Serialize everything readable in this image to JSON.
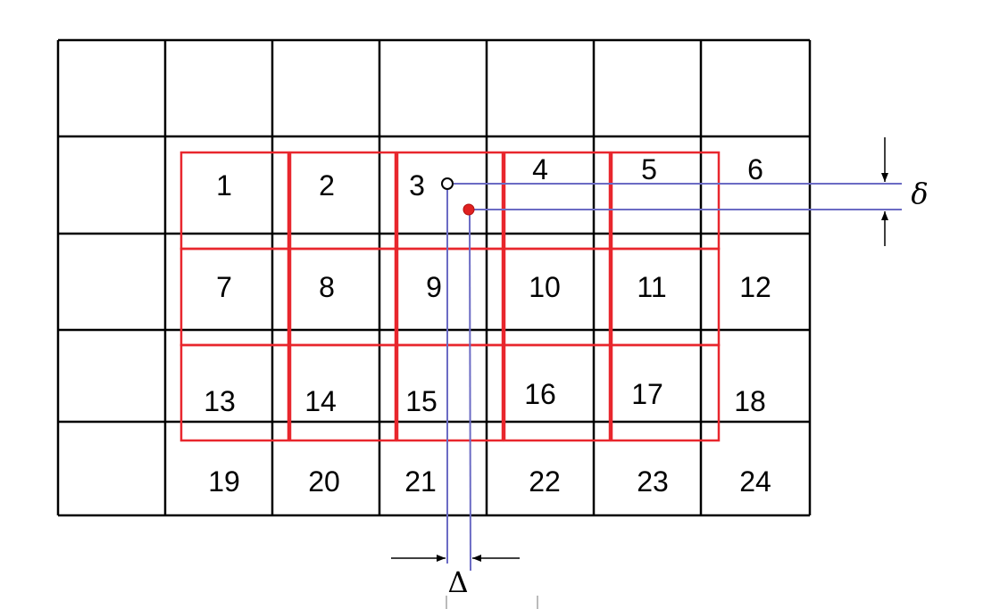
{
  "cells": [
    "1",
    "2",
    "3",
    "4",
    "5",
    "6",
    "7",
    "8",
    "9",
    "10",
    "11",
    "12",
    "13",
    "14",
    "15",
    "16",
    "17",
    "18",
    "19",
    "20",
    "21",
    "22",
    "23",
    "24"
  ],
  "symbols": {
    "delta_small": "δ",
    "delta_large": "Δ"
  },
  "colors": {
    "grid": "#000000",
    "overlay_grid": "#e8262d",
    "guide_lines": "#6b6bc4",
    "filled_point": "#e02020"
  }
}
